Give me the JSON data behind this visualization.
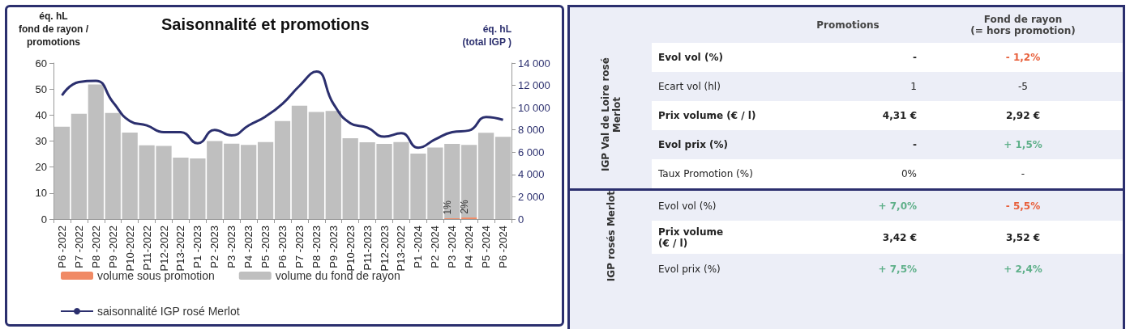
{
  "chart_data": [
    {
      "type": "bar",
      "title": "Saisonnalité et promotions",
      "ylabel": "éq. hL\nfond de rayon /\npromotions",
      "y2label": "éq. hL\n(total IGP )",
      "categories": [
        "P6 -2022",
        "P7 -2022",
        "P8 -2022",
        "P9 -2022",
        "P10-2022",
        "P11-2022",
        "P12-2022",
        "P13-2022",
        "P1 -2023",
        "P2 -2023",
        "P3 -2023",
        "P4 -2023",
        "P5 -2023",
        "P6 -2023",
        "P7 -2023",
        "P8 -2023",
        "P9 -2023",
        "P10-2023",
        "P11-2023",
        "P12-2023",
        "P13-2022",
        "P1 -2024",
        "P2 -2024",
        "P3 -2024",
        "P4 -2024",
        "P5 -2024",
        "P6 -2024"
      ],
      "stacked": true,
      "series": [
        {
          "name": "volume sous promotion",
          "color": "#f08a65",
          "values": [
            null,
            null,
            null,
            null,
            null,
            null,
            null,
            null,
            null,
            null,
            null,
            null,
            null,
            null,
            null,
            null,
            null,
            null,
            null,
            null,
            null,
            null,
            null,
            0.3,
            0.6,
            null,
            null
          ]
        },
        {
          "name": "volume du fond de rayon",
          "color": "#bfbfbf",
          "values": [
            35.5,
            40.5,
            51.8,
            40.8,
            33.3,
            28.4,
            28.1,
            23.6,
            23.3,
            30.0,
            29.0,
            28.5,
            29.6,
            37.7,
            43.6,
            41.2,
            41.6,
            31.1,
            29.5,
            28.9,
            29.6,
            25.2,
            27.5,
            28.6,
            27.9,
            33.2,
            31.6
          ]
        },
        {
          "name": "saisonnalité IGP rosé Merlot",
          "type": "line",
          "axis": "y2",
          "color": "#2b2f6e",
          "values": [
            11100,
            12300,
            12400,
            10500,
            8800,
            8400,
            7800,
            7800,
            6800,
            8000,
            7500,
            8400,
            9200,
            10350,
            11950,
            13230,
            10350,
            8600,
            8200,
            7400,
            7700,
            6400,
            7150,
            7800,
            7950,
            9150,
            8900
          ]
        }
      ],
      "annotations": [
        {
          "text": "1%",
          "x": "P3 -2024",
          "y": 0.3
        },
        {
          "text": "2%",
          "x": "P4 -2024",
          "y": 0.6
        }
      ],
      "marker": "none",
      "legend": "bottom",
      "ylim": [
        0,
        60
      ],
      "yticks": [
        0,
        10,
        20,
        30,
        40,
        50,
        60
      ],
      "y2lim": [
        0,
        14000
      ],
      "y2ticks": [
        0,
        {
          "value": 2000,
          "label": "2 000"
        },
        {
          "value": 4000,
          "label": "4 000"
        },
        {
          "value": 6000,
          "label": "6 000"
        },
        {
          "value": 8000,
          "label": "8 000"
        },
        {
          "value": 10000,
          "label": "10 000"
        },
        {
          "value": 12000,
          "label": "12 000"
        },
        {
          "value": 14000,
          "label": "14 000"
        }
      ]
    },
    {
      "type": "other",
      "categories": [
        "Promotions",
        "Fond de rayon\n(= hors promotion)"
      ],
      "y_categories": [
        "Evol vol (%)",
        "Ecart vol (hl)",
        "Prix volume (€ / l)",
        "Evol prix (%)",
        "Taux Promotion (%)",
        "Evol vol (%)",
        "Prix volume\n (€ / l)",
        "Evol prix (%)"
      ],
      "y2_categories": [
        "IGP Val de Loire rosé Merlot",
        null,
        null,
        null,
        null,
        "IGP rosés Merlot",
        null,
        null
      ],
      "cell_labels": [
        [
          "-",
          "- 1,2%"
        ],
        [
          "1",
          "-5"
        ],
        [
          "4,31 €",
          "2,92 €"
        ],
        [
          "-",
          "+ 1,5%"
        ],
        [
          "0%",
          "-"
        ],
        [
          "+ 7,0%",
          "- 5,5%"
        ],
        [
          "3,42 €",
          "3,52 €"
        ],
        [
          "+ 7,5%",
          "+ 2,4%"
        ]
      ]
    }
  ]
}
